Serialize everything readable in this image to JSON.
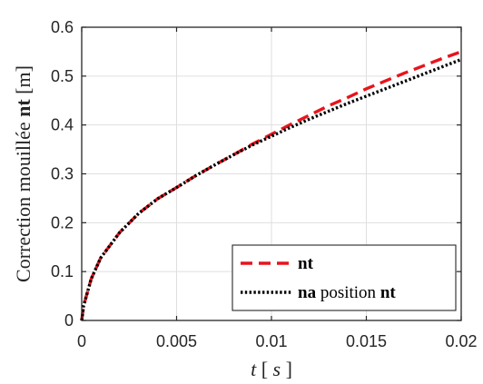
{
  "chart_data": {
    "type": "line",
    "xlabel": {
      "var": "t",
      "unit": "s"
    },
    "ylabel": {
      "text": "Correction mouillée",
      "bold": "nt",
      "unit": "[m]"
    },
    "xlim": [
      0,
      0.02
    ],
    "ylim": [
      0,
      0.6
    ],
    "xticks": [
      0,
      0.005,
      0.01,
      0.015,
      0.02
    ],
    "xtick_labels": [
      "0",
      "0.005",
      "0.01",
      "0.015",
      "0.02"
    ],
    "yticks": [
      0,
      0.1,
      0.2,
      0.3,
      0.4,
      0.5,
      0.6
    ],
    "ytick_labels": [
      "0",
      "0.1",
      "0.2",
      "0.3",
      "0.4",
      "0.5",
      "0.6"
    ],
    "grid": true,
    "legend_position": "bottom-right",
    "series": [
      {
        "name": "nt",
        "legend": {
          "bold": "nt",
          "rest": ""
        },
        "color": "#e8141c",
        "style": "dashed",
        "x": [
          0,
          0.0001,
          0.0005,
          0.001,
          0.002,
          0.003,
          0.004,
          0.005,
          0.006,
          0.007,
          0.008,
          0.009,
          0.01,
          0.011,
          0.012,
          0.013,
          0.014,
          0.015,
          0.016,
          0.017,
          0.018,
          0.019,
          0.02
        ],
        "values": [
          0,
          0.03,
          0.085,
          0.128,
          0.18,
          0.219,
          0.249,
          0.272,
          0.296,
          0.318,
          0.339,
          0.361,
          0.381,
          0.401,
          0.42,
          0.439,
          0.456,
          0.474,
          0.49,
          0.506,
          0.521,
          0.536,
          0.55
        ]
      },
      {
        "name": "na position nt",
        "legend": {
          "bold": "na",
          "middle": " position ",
          "bold2": "nt"
        },
        "color": "#000000",
        "style": "dotted",
        "x": [
          0,
          0.0001,
          0.0005,
          0.001,
          0.002,
          0.003,
          0.004,
          0.005,
          0.006,
          0.007,
          0.008,
          0.009,
          0.01,
          0.011,
          0.012,
          0.013,
          0.014,
          0.015,
          0.016,
          0.017,
          0.018,
          0.019,
          0.02
        ],
        "values": [
          0,
          0.03,
          0.085,
          0.128,
          0.18,
          0.219,
          0.249,
          0.272,
          0.296,
          0.318,
          0.339,
          0.359,
          0.377,
          0.395,
          0.412,
          0.428,
          0.444,
          0.459,
          0.474,
          0.489,
          0.504,
          0.519,
          0.534
        ]
      }
    ]
  }
}
